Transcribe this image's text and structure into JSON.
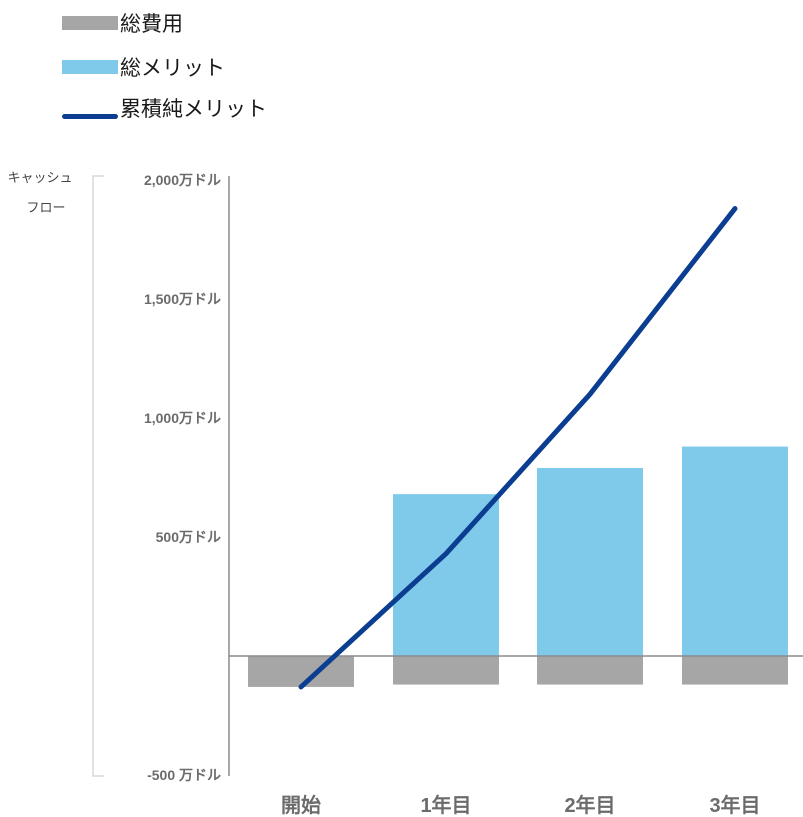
{
  "chart_data": {
    "type": "bar",
    "categories": [
      "開始",
      "1年目",
      "2年目",
      "3年目"
    ],
    "series": [
      {
        "name": "総費用",
        "kind": "bar",
        "color": "#a6a6a6",
        "values": [
          -1.3,
          -1.2,
          -1.2,
          -1.2
        ]
      },
      {
        "name": "総メリット",
        "kind": "bar",
        "color": "#7fc9ea",
        "values": [
          0,
          6.8,
          7.9,
          8.8
        ]
      },
      {
        "name": "累積純メリット",
        "kind": "line",
        "color": "#0b3d91",
        "values": [
          -1.3,
          4.3,
          11.0,
          18.8
        ]
      }
    ],
    "ylabel_lines": [
      "キャッシュ",
      "フロー"
    ],
    "yticks": [
      {
        "value": 20,
        "label": "2,000万ドル"
      },
      {
        "value": 15,
        "label": "1,500万ドル"
      },
      {
        "value": 10,
        "label": "1,000万ドル"
      },
      {
        "value": 5,
        "label": "500万ドル"
      },
      {
        "value": -5,
        "label": "-500 万ドル"
      }
    ],
    "ylim": [
      -5,
      20
    ],
    "grid": false,
    "legend_position": "top-left"
  }
}
